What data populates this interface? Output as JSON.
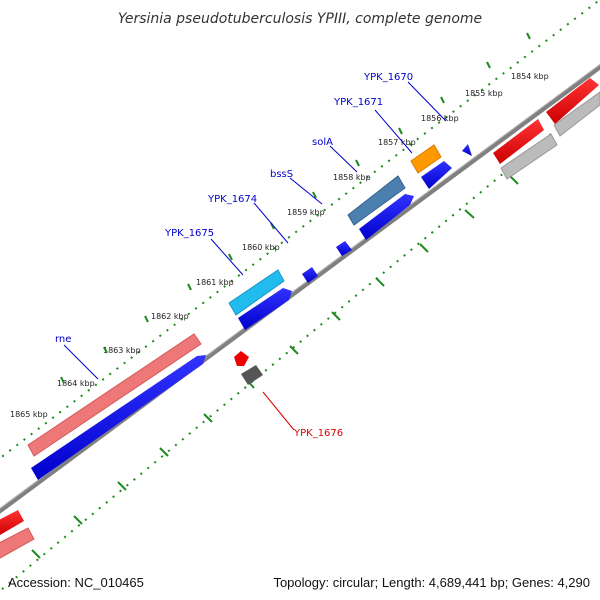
{
  "title": "Yersinia pseudotuberculosis YPIII, complete genome",
  "footer": {
    "accession": "Accession: NC_010465",
    "stats": "Topology: circular; Length: 4,689,441 bp; Genes: 4,290"
  },
  "ticks": [
    "1854 kbp",
    "1855 kbp",
    "1856 kbp",
    "1857 kbp",
    "1858 kbp",
    "1859 kbp",
    "1860 kbp",
    "1861 kbp",
    "1862 kbp",
    "1863 kbp",
    "1864 kbp",
    "1865 kbp"
  ],
  "genes": [
    {
      "label": "YPK_1670",
      "color": "#0000cc"
    },
    {
      "label": "YPK_1671",
      "color": "#0000cc"
    },
    {
      "label": "solA",
      "color": "#0000cc"
    },
    {
      "label": "bssS",
      "color": "#0000cc"
    },
    {
      "label": "YPK_1674",
      "color": "#0000cc"
    },
    {
      "label": "YPK_1675",
      "color": "#0000cc"
    },
    {
      "label": "rne",
      "color": "#0000cc"
    },
    {
      "label": "YPK_1676",
      "color": "#dd0000"
    }
  ],
  "colors": {
    "backbone": "#808080",
    "tick": "#1f8a1f",
    "cds_forward": "#0000ee",
    "cds_reverse": "#ee0000",
    "feature_orange": "#ff9900",
    "feature_steelblue": "#4a7fb0",
    "feature_cyan": "#22bbee",
    "feature_pink": "#ee7777",
    "feature_gray": "#bbbbbb"
  }
}
